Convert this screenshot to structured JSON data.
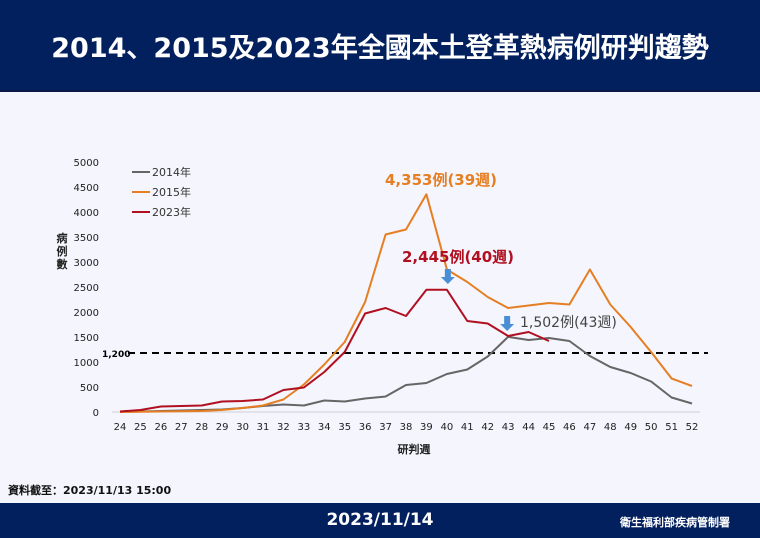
{
  "header": {
    "title": "2014、2015及2023年全國本土登革熱病例研判趨勢"
  },
  "chart_data": {
    "type": "line",
    "title": "2014、2015及2023年全國本土登革熱病例研判趨勢",
    "xlabel": "研判週",
    "ylabel": "病例數",
    "ylim": [
      0,
      5000
    ],
    "yticks": [
      0,
      500,
      1000,
      1500,
      2000,
      2500,
      3000,
      3500,
      4000,
      4500,
      5000
    ],
    "grid": false,
    "legend_position": "upper-left",
    "categories": [
      "24",
      "25",
      "26",
      "27",
      "28",
      "29",
      "30",
      "31",
      "32",
      "33",
      "34",
      "35",
      "36",
      "37",
      "38",
      "39",
      "40",
      "41",
      "42",
      "43",
      "44",
      "45",
      "46",
      "47",
      "48",
      "49",
      "50",
      "51",
      "52"
    ],
    "series": [
      {
        "name": "2014年",
        "color": "#666666",
        "values": [
          5,
          10,
          20,
          30,
          40,
          50,
          80,
          120,
          150,
          130,
          230,
          210,
          270,
          310,
          540,
          580,
          760,
          850,
          1110,
          1502,
          1440,
          1480,
          1420,
          1120,
          900,
          780,
          610,
          290,
          170
        ]
      },
      {
        "name": "2015年",
        "color": "#e67e22",
        "values": [
          0,
          5,
          10,
          15,
          20,
          40,
          80,
          130,
          250,
          550,
          950,
          1400,
          2200,
          3550,
          3650,
          4353,
          2850,
          2600,
          2300,
          2080,
          2130,
          2180,
          2150,
          2850,
          2150,
          1700,
          1200,
          670,
          520
        ]
      },
      {
        "name": "2023年",
        "color": "#b01020",
        "values": [
          10,
          40,
          110,
          120,
          130,
          210,
          220,
          250,
          440,
          490,
          800,
          1200,
          1970,
          2080,
          1920,
          2445,
          2445,
          1820,
          1770,
          1520,
          1600,
          1420,
          null,
          null,
          null,
          null,
          null,
          null,
          null
        ]
      }
    ],
    "reference_line": {
      "value": 1200,
      "label": "1,200",
      "style": "dashed",
      "color": "#000000"
    },
    "annotations": [
      {
        "text": "4,353例(39週)",
        "color": "#e67e22",
        "series": "2015年",
        "week": "39"
      },
      {
        "text": "2,445例(40週)",
        "color": "#b01020",
        "series": "2023年",
        "week": "40"
      },
      {
        "text": "1,502例(43週)",
        "color": "#444444",
        "series": "2014年",
        "week": "43"
      }
    ]
  },
  "source_note": "資料截至：2023/11/13 15:00",
  "footer": {
    "date": "2023/11/14",
    "org": "衛生福利部疾病管制署"
  },
  "colors": {
    "header_bg": "#03205e",
    "page_bg": "#f4f5fd",
    "arrow": "#4a8fd6"
  }
}
